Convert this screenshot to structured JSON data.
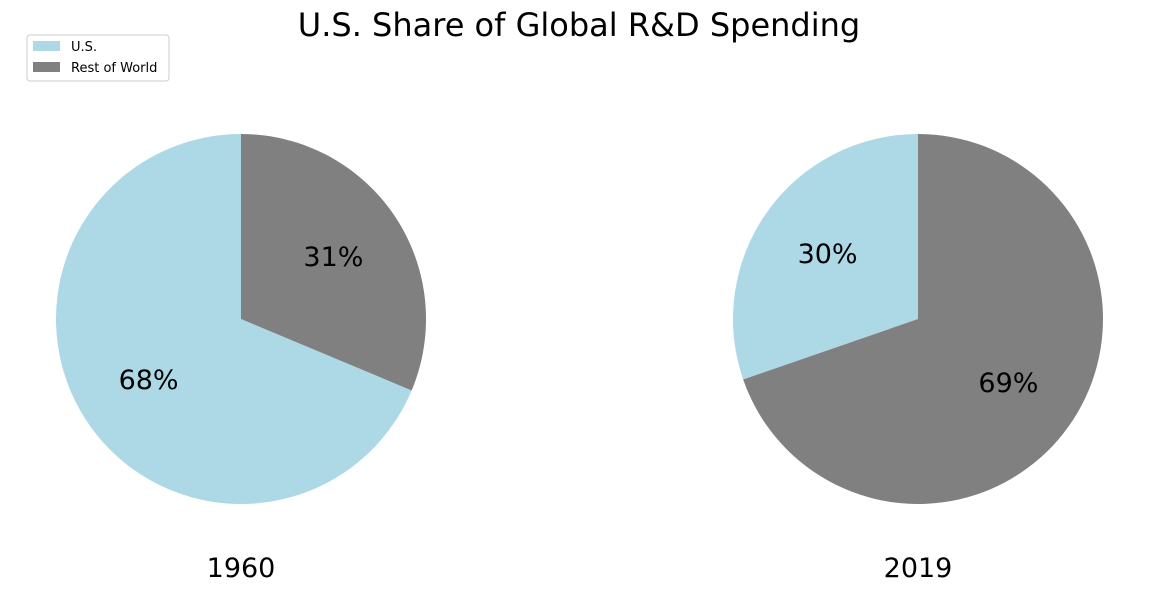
{
  "chart_data": {
    "type": "pie",
    "title": "U.S. Share of Global R&D Spending",
    "legend": {
      "placement": "top-left",
      "entries": [
        {
          "label": "U.S.",
          "color": "#add8e6"
        },
        {
          "label": "Rest of World",
          "color": "#808080"
        }
      ]
    },
    "pies": [
      {
        "year": "1960",
        "slices": [
          {
            "name": "U.S.",
            "value": 68,
            "label": "68%",
            "color": "#add8e6"
          },
          {
            "name": "Rest of World",
            "value": 31,
            "label": "31%",
            "color": "#808080"
          }
        ]
      },
      {
        "year": "2019",
        "slices": [
          {
            "name": "U.S.",
            "value": 30,
            "label": "30%",
            "color": "#add8e6"
          },
          {
            "name": "Rest of World",
            "value": 69,
            "label": "69%",
            "color": "#808080"
          }
        ]
      }
    ]
  }
}
